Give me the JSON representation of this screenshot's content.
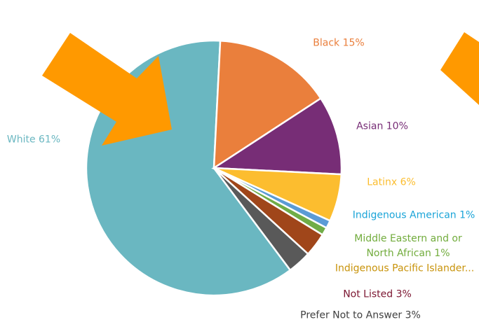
{
  "chart_data": {
    "type": "pie",
    "categories": [
      "White 61%",
      "Black 15%",
      "Asian 10%",
      "Latinx 6%",
      "Indigenous American 1%",
      "Middle Eastern and or North African 1%",
      "Indigenous Pacific Islander...",
      "Not Listed 3%",
      "Prefer Not to Answer 3%"
    ],
    "values": [
      61,
      15,
      10,
      6,
      1,
      1,
      0,
      3,
      3
    ],
    "colors": [
      "#6ab7c1",
      "#ea7f3c",
      "#772d76",
      "#fcbd2f",
      "#5b9bd5",
      "#70ad47",
      "#c8930b",
      "#a0461a",
      "#595959"
    ],
    "label_colors": [
      "#6ab7c1",
      "#ea7f3c",
      "#772d76",
      "#fbbd2e",
      "#1aa4d8",
      "#72ac3d",
      "#c8930b",
      "#7b1530",
      "#404040"
    ]
  }
}
